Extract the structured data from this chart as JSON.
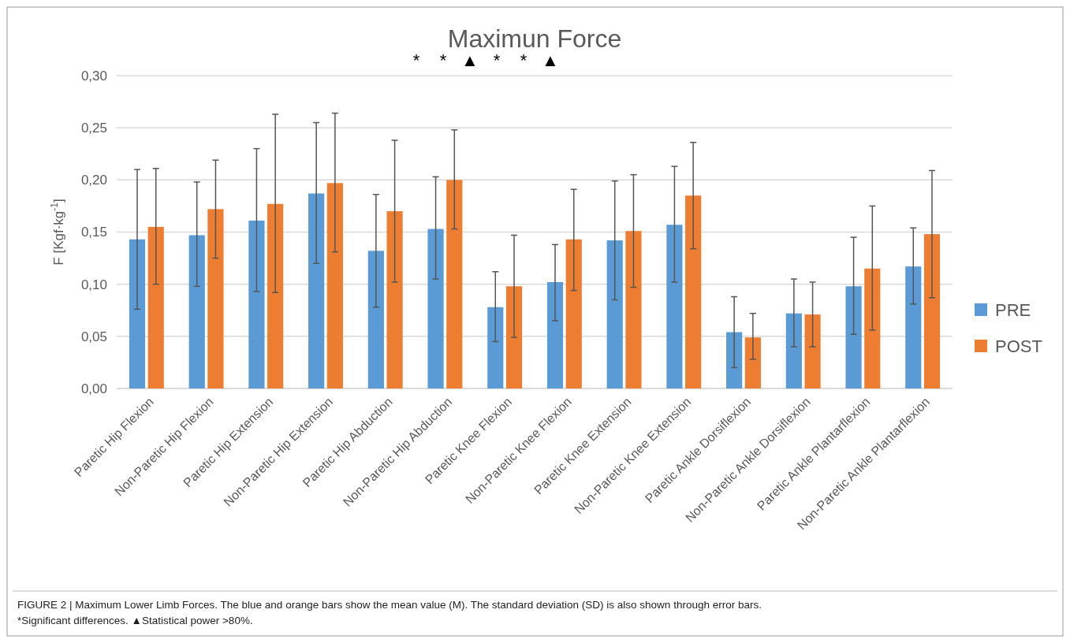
{
  "chart_data": {
    "type": "bar",
    "title": "Maximun Force",
    "ylabel": "F [Kgf·kg$^{-1}$]",
    "categories": [
      "Paretic Hip Flexion",
      "Non-Paretic Hip Flexion",
      "Paretic Hip Extension",
      "Non-Paretic Hip Extension",
      "Paretic Hip Abduction",
      "Non-Paretic Hip Abduction",
      "Paretic Knee Flexion",
      "Non-Paretic Knee Flexion",
      "Paretic Knee Extension",
      "Non-Paretic Knee Extension",
      "Paretic Ankle Dorsiflexion",
      "Non-Paretic Ankle Dorsiflexion",
      "Paretic Ankle Plantarflexion",
      "Non-Paretic Ankle Plantarflexion"
    ],
    "series": [
      {
        "name": "PRE",
        "color": "#5b9bd5",
        "values": [
          0.143,
          0.147,
          0.161,
          0.187,
          0.132,
          0.153,
          0.078,
          0.102,
          0.142,
          0.157,
          0.054,
          0.072,
          0.098,
          0.117
        ],
        "errors": [
          [
            0.076,
            0.21
          ],
          [
            0.098,
            0.198
          ],
          [
            0.093,
            0.23
          ],
          [
            0.12,
            0.255
          ],
          [
            0.078,
            0.186
          ],
          [
            0.105,
            0.203
          ],
          [
            0.045,
            0.112
          ],
          [
            0.065,
            0.138
          ],
          [
            0.085,
            0.199
          ],
          [
            0.102,
            0.213
          ],
          [
            0.02,
            0.088
          ],
          [
            0.04,
            0.105
          ],
          [
            0.052,
            0.145
          ],
          [
            0.081,
            0.154
          ]
        ]
      },
      {
        "name": "POST",
        "color": "#ed7d31",
        "values": [
          0.155,
          0.172,
          0.177,
          0.197,
          0.17,
          0.2,
          0.098,
          0.143,
          0.151,
          0.185,
          0.049,
          0.071,
          0.115,
          0.148
        ],
        "errors": [
          [
            0.1,
            0.211
          ],
          [
            0.125,
            0.219
          ],
          [
            0.092,
            0.263
          ],
          [
            0.131,
            0.264
          ],
          [
            0.102,
            0.238
          ],
          [
            0.153,
            0.248
          ],
          [
            0.049,
            0.147
          ],
          [
            0.094,
            0.191
          ],
          [
            0.097,
            0.205
          ],
          [
            0.134,
            0.236
          ],
          [
            0.028,
            0.072
          ],
          [
            0.04,
            0.102
          ],
          [
            0.056,
            0.175
          ],
          [
            0.087,
            0.209
          ]
        ]
      }
    ],
    "ylim": [
      0,
      0.3
    ],
    "yticks": [
      {
        "value": 0,
        "label": "0,00"
      },
      {
        "value": 0.05,
        "label": "0,05"
      },
      {
        "value": 0.1,
        "label": "0,10"
      },
      {
        "value": 0.15,
        "label": "0,15"
      },
      {
        "value": 0.2,
        "label": "0,20"
      },
      {
        "value": 0.25,
        "label": "0,25"
      },
      {
        "value": 0.3,
        "label": "0,30"
      }
    ],
    "grid": "y",
    "legend": "right",
    "annotations": [
      "*",
      "*",
      "▲",
      "*",
      "*",
      "▲",
      "FIGURE 2 | Maximum Lower Limb Forces. The blue and orange bars show the mean value (M). The standard deviation (SD) is also shown through error bars.",
      "*Significant differences. ▲Statistical power >80%."
    ]
  }
}
